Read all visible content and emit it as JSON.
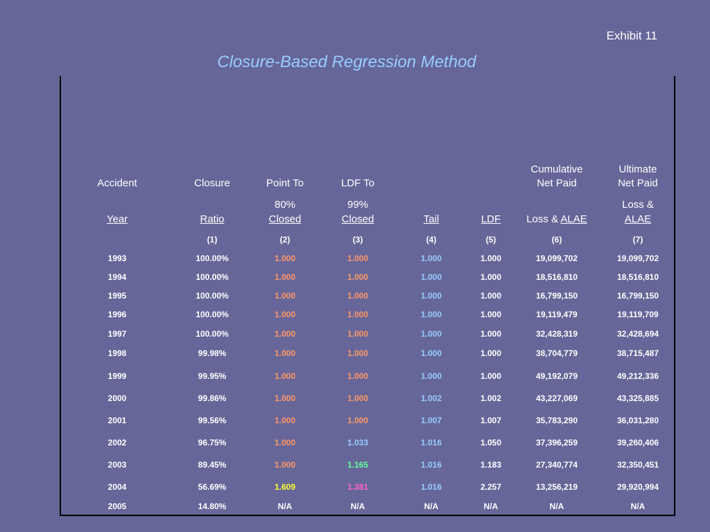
{
  "exhibit": "Exhibit 11",
  "title": "Closure-Based Regression Method",
  "header": {
    "row1": [
      "Accident",
      "Closure",
      "Point To",
      "LDF To",
      "",
      "",
      "Cumulative\nNet Paid",
      "Ultimate\nNet Paid"
    ],
    "row2_top": [
      "",
      "",
      "80%",
      "99%",
      "",
      "",
      "",
      "Loss &"
    ],
    "row2_bottom": [
      "Year",
      "Ratio",
      "Closed",
      "Closed",
      "Tail",
      "LDF",
      "Loss & ",
      "ALAE"
    ],
    "row2_bottom_extra": [
      "",
      "",
      "",
      "",
      "",
      "",
      "ALAE",
      ""
    ],
    "col_numbers": [
      "",
      "(1)",
      "(2)",
      "(3)",
      "(4)",
      "(5)",
      "(6)",
      "(7)"
    ]
  },
  "colors": {
    "background": "#666699",
    "title": "#99ccff",
    "orange": "#ff9966",
    "blue": "#99ccff",
    "green": "#66ff99",
    "yellow": "#ffff33",
    "pink": "#ff66cc"
  },
  "rows": [
    {
      "year": "1993",
      "ratio": "100.00%",
      "c2": "1.000",
      "c2c": "orange",
      "c3": "1.000",
      "c3c": "orange",
      "c4": "1.000",
      "c4c": "blue",
      "ldf": "1.000",
      "paid": "19,099,702",
      "ult": "19,099,702"
    },
    {
      "year": "1994",
      "ratio": "100.00%",
      "c2": "1.000",
      "c2c": "orange",
      "c3": "1.000",
      "c3c": "orange",
      "c4": "1.000",
      "c4c": "blue",
      "ldf": "1.000",
      "paid": "18,516,810",
      "ult": "18,516,810"
    },
    {
      "year": "1995",
      "ratio": "100.00%",
      "c2": "1.000",
      "c2c": "orange",
      "c3": "1.000",
      "c3c": "orange",
      "c4": "1.000",
      "c4c": "blue",
      "ldf": "1.000",
      "paid": "16,799,150",
      "ult": "16,799,150"
    },
    {
      "year": "1996",
      "ratio": "100.00%",
      "c2": "1.000",
      "c2c": "orange",
      "c3": "1.000",
      "c3c": "orange",
      "c4": "1.000",
      "c4c": "blue",
      "ldf": "1.000",
      "paid": "19,119,479",
      "ult": "19,119,709"
    },
    {
      "year": "1997",
      "ratio": "100.00%",
      "c2": "1.000",
      "c2c": "orange",
      "c3": "1.000",
      "c3c": "orange",
      "c4": "1.000",
      "c4c": "blue",
      "ldf": "1.000",
      "paid": "32,428,319",
      "ult": "32,428,694"
    },
    {
      "year": "1998",
      "ratio": "99.98%",
      "c2": "1.000",
      "c2c": "orange",
      "c3": "1.000",
      "c3c": "orange",
      "c4": "1.000",
      "c4c": "blue",
      "ldf": "1.000",
      "paid": "38,704,779",
      "ult": "38,715,487"
    },
    {
      "year": "1999",
      "ratio": "99.95%",
      "c2": "1.000",
      "c2c": "orange",
      "c3": "1.000",
      "c3c": "orange",
      "c4": "1.000",
      "c4c": "blue",
      "ldf": "1.000",
      "paid": "49,192,079",
      "ult": "49,212,336"
    },
    {
      "year": "2000",
      "ratio": "99.86%",
      "c2": "1.000",
      "c2c": "orange",
      "c3": "1.000",
      "c3c": "orange",
      "c4": "1.002",
      "c4c": "blue",
      "ldf": "1.002",
      "paid": "43,227,069",
      "ult": "43,325,885"
    },
    {
      "year": "2001",
      "ratio": "99.56%",
      "c2": "1.000",
      "c2c": "orange",
      "c3": "1.000",
      "c3c": "orange",
      "c4": "1.007",
      "c4c": "blue",
      "ldf": "1.007",
      "paid": "35,783,290",
      "ult": "36,031,280"
    },
    {
      "year": "2002",
      "ratio": "96.75%",
      "c2": "1.000",
      "c2c": "orange",
      "c3": "1.033",
      "c3c": "blue",
      "c4": "1.016",
      "c4c": "blue",
      "ldf": "1.050",
      "paid": "37,396,259",
      "ult": "39,260,406"
    },
    {
      "year": "2003",
      "ratio": "89.45%",
      "c2": "1.000",
      "c2c": "orange",
      "c3": "1.165",
      "c3c": "green",
      "c4": "1.016",
      "c4c": "blue",
      "ldf": "1.183",
      "paid": "27,340,774",
      "ult": "32,350,451"
    },
    {
      "year": "2004",
      "ratio": "56.69%",
      "c2": "1.609",
      "c2c": "yellow",
      "c3": "1.381",
      "c3c": "pink",
      "c4": "1.016",
      "c4c": "blue",
      "ldf": "2.257",
      "paid": "13,256,219",
      "ult": "29,920,994"
    },
    {
      "year": "2005",
      "ratio": "14.80%",
      "c2": "N/A",
      "c2c": "white",
      "c3": "N/A",
      "c3c": "white",
      "c4": "N/A",
      "c4c": "white",
      "ldf": "N/A",
      "paid": "N/A",
      "ult": "N/A"
    }
  ]
}
